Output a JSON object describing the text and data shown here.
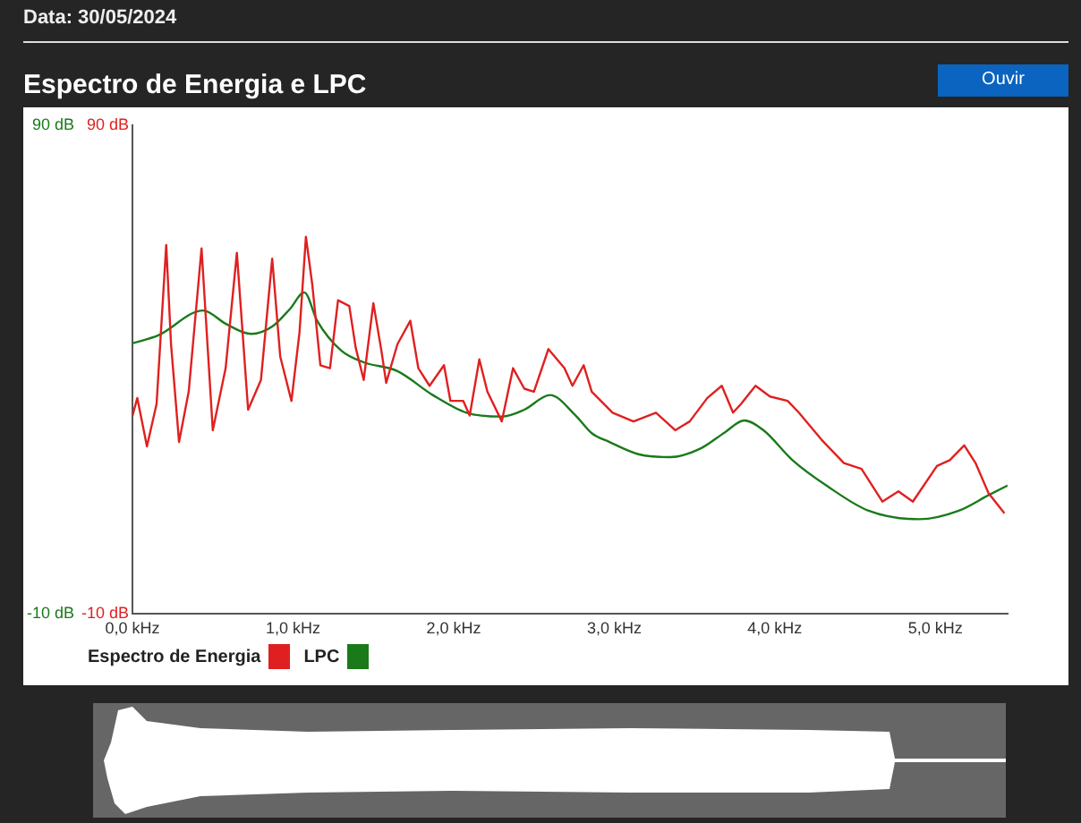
{
  "chart_data": {
    "type": "line",
    "title": "Espectro de Energia e LPC",
    "annotations": [
      "Data: 30/05/2024",
      "Ouvir"
    ],
    "xlim": [
      0,
      5.45
    ],
    "xticks": [
      {
        "value": 0,
        "label": "0,0 kHz"
      },
      {
        "value": 1,
        "label": "1,0 kHz"
      },
      {
        "value": 2,
        "label": "2,0 kHz"
      },
      {
        "value": 3,
        "label": "3,0 kHz"
      },
      {
        "value": 4,
        "label": "4,0 kHz"
      },
      {
        "value": 5,
        "label": "5,0 kHz"
      }
    ],
    "ylim": [
      -10,
      90
    ],
    "yticks": [
      {
        "value": -10,
        "label": "-10 dB"
      },
      {
        "value": 90,
        "label": "90 dB"
      }
    ],
    "y2lim": [
      -10,
      90
    ],
    "y2ticks": [
      {
        "value": -10,
        "label": "-10 dB"
      },
      {
        "value": 90,
        "label": "90 dB"
      }
    ],
    "legend": "bottom left",
    "marker": "none",
    "line_style": "solid",
    "series": [
      {
        "name": "Espectro de Energia",
        "color": "#e02020",
        "x": [
          0,
          0.03,
          0.09,
          0.15,
          0.21,
          0.24,
          0.29,
          0.35,
          0.43,
          0.5,
          0.58,
          0.65,
          0.72,
          0.8,
          0.87,
          0.92,
          0.99,
          1.04,
          1.08,
          1.12,
          1.17,
          1.23,
          1.28,
          1.35,
          1.39,
          1.44,
          1.5,
          1.55,
          1.58,
          1.65,
          1.73,
          1.78,
          1.85,
          1.94,
          1.98,
          2.06,
          2.1,
          2.16,
          2.21,
          2.3,
          2.37,
          2.44,
          2.5,
          2.59,
          2.69,
          2.74,
          2.81,
          2.86,
          2.99,
          3.12,
          3.26,
          3.38,
          3.47,
          3.58,
          3.67,
          3.74,
          3.79,
          3.88,
          3.97,
          4.08,
          4.15,
          4.29,
          4.43,
          4.54,
          4.67,
          4.77,
          4.86,
          5.01,
          5.09,
          5.18,
          5.25,
          5.33,
          5.43
        ],
        "values": [
          30.6,
          34.2,
          24.3,
          33,
          65.5,
          45.2,
          25.2,
          35.5,
          64.8,
          27.6,
          40.3,
          63.9,
          31.8,
          37.9,
          62.7,
          42.7,
          33.6,
          47.6,
          67.2,
          57.3,
          40.9,
          40.3,
          54.2,
          53,
          44.5,
          37.9,
          53.6,
          43.9,
          37.3,
          45.2,
          50,
          40.3,
          36.7,
          40.9,
          33.6,
          33.6,
          30.6,
          42.1,
          35.5,
          29.4,
          40.3,
          36.1,
          35.5,
          44.2,
          40.3,
          36.7,
          40.9,
          35.5,
          31.2,
          29.4,
          31.2,
          27.6,
          29.4,
          34.2,
          36.7,
          31.2,
          33,
          36.7,
          34.5,
          33.6,
          31.2,
          25.7,
          20.9,
          19.7,
          13,
          15.1,
          13,
          20.3,
          21.5,
          24.5,
          20.9,
          14.8,
          10.6
        ]
      },
      {
        "name": "LPC",
        "color": "#1a7a1a",
        "axis": "y2",
        "x": [
          0,
          0.16,
          0.44,
          0.58,
          0.74,
          0.87,
          0.98,
          1.07,
          1.15,
          1.3,
          1.44,
          1.65,
          1.87,
          2.08,
          2.3,
          2.44,
          2.6,
          2.76,
          2.86,
          2.97,
          3.15,
          3.35,
          3.54,
          3.69,
          3.81,
          3.93,
          4.11,
          4.33,
          4.58,
          4.9,
          5.15,
          5.33,
          5.45
        ],
        "values": [
          45.4,
          47,
          52.1,
          49.4,
          47.3,
          48.8,
          52.4,
          55.8,
          50,
          43.9,
          41.5,
          39.7,
          34.8,
          31.2,
          30.4,
          31.8,
          34.8,
          30.6,
          27,
          25.2,
          22.7,
          22.1,
          23.9,
          27.2,
          29.6,
          27.6,
          21.5,
          16.1,
          11.2,
          9.4,
          11.2,
          14.3,
          16.3
        ]
      }
    ]
  }
}
